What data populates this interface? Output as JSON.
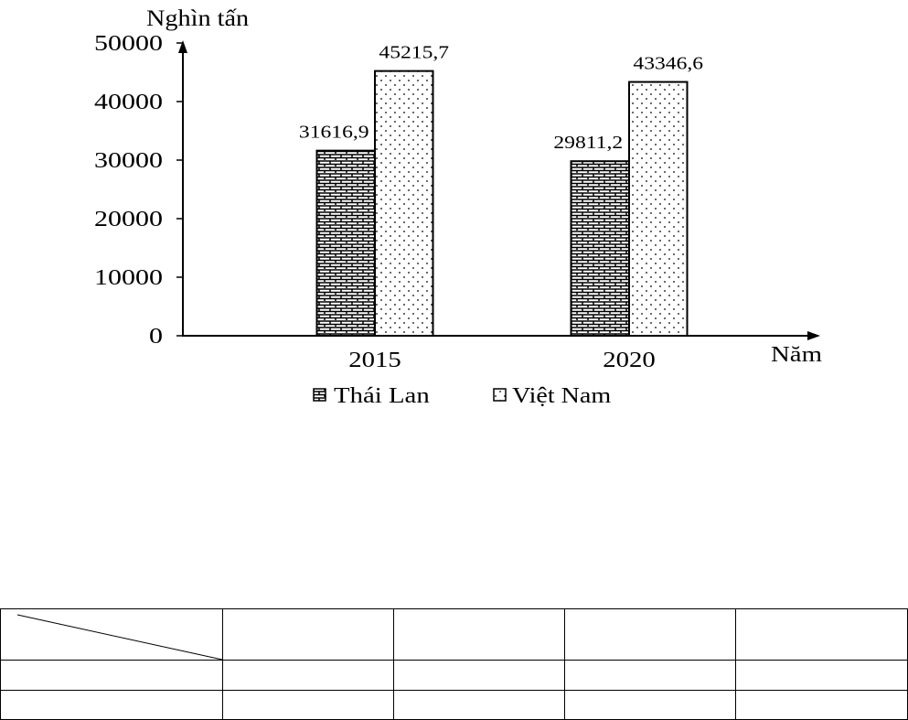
{
  "chart_data": {
    "type": "bar",
    "categories": [
      "2015",
      "2020"
    ],
    "series": [
      {
        "name": "Thái Lan",
        "values": [
          31616.9,
          29811.2
        ],
        "labels": [
          "31616,9",
          "29811,2"
        ]
      },
      {
        "name": "Việt Nam",
        "values": [
          45215.7,
          43346.6
        ],
        "labels": [
          "45215,7",
          "43346,6"
        ]
      }
    ],
    "ylabel": "Nghìn tấn",
    "xlabel": "Năm",
    "ylim": [
      0,
      50000
    ],
    "yticks": [
      0,
      10000,
      20000,
      30000,
      40000,
      50000
    ],
    "grid": false,
    "legend": "bottom"
  },
  "table": {
    "header": [
      "",
      "",
      "",
      "",
      ""
    ],
    "rows": [
      [
        "",
        "",
        "",
        "",
        ""
      ],
      [
        "",
        "",
        "",
        "",
        ""
      ]
    ]
  }
}
